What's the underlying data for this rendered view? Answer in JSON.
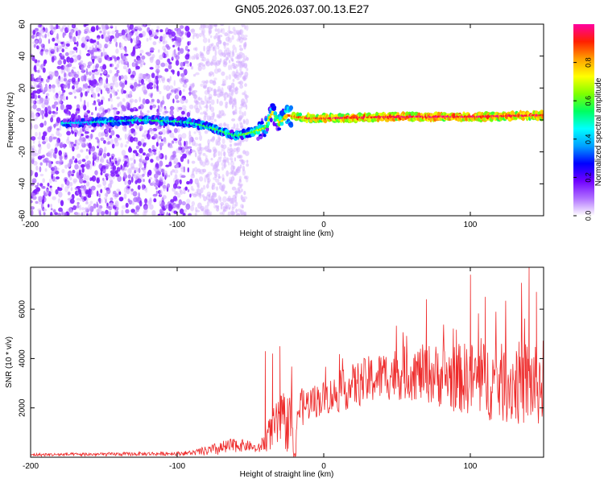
{
  "title": "GN05.2026.037.00.13.E27",
  "chart_data": [
    {
      "type": "heatmap",
      "xlabel": "Height of straight line (km)",
      "ylabel": "Frequency (Hz)",
      "xlim": [
        -200,
        150
      ],
      "ylim": [
        -60,
        60
      ],
      "xticks": [
        -200,
        -100,
        0,
        100
      ],
      "yticks": [
        -60,
        -40,
        -20,
        0,
        20,
        40,
        60
      ],
      "colorbar": {
        "label": "Normalized spectral amplitude",
        "range": [
          0,
          1
        ],
        "ticks": [
          "0.0",
          "0.2",
          "0.4",
          "0.6",
          "0.8"
        ],
        "colors": [
          "#ffffff",
          "#b070ff",
          "#7000ff",
          "#0000ff",
          "#00a0ff",
          "#00ffff",
          "#00ff60",
          "#80ff00",
          "#ffff00",
          "#ffa000",
          "#ff2000",
          "#ff00a0"
        ]
      },
      "ridge_frequency_hz": [
        [
          -175,
          -2
        ],
        [
          -150,
          -1
        ],
        [
          -125,
          0
        ],
        [
          -100,
          -1
        ],
        [
          -90,
          -2
        ],
        [
          -80,
          -4
        ],
        [
          -70,
          -7
        ],
        [
          -60,
          -10
        ],
        [
          -50,
          -8
        ],
        [
          -40,
          -5
        ],
        [
          -35,
          5
        ],
        [
          -30,
          -2
        ],
        [
          -25,
          3
        ],
        [
          -20,
          2
        ],
        [
          -10,
          1
        ],
        [
          0,
          1
        ],
        [
          50,
          2
        ],
        [
          100,
          2
        ],
        [
          150,
          3
        ]
      ],
      "ridge_amplitude": [
        [
          -175,
          0.3
        ],
        [
          -150,
          0.35
        ],
        [
          -100,
          0.4
        ],
        [
          -60,
          0.45
        ],
        [
          -40,
          0.55
        ],
        [
          -20,
          0.75
        ],
        [
          0,
          0.8
        ],
        [
          50,
          0.85
        ],
        [
          100,
          0.85
        ],
        [
          150,
          0.82
        ]
      ]
    },
    {
      "type": "line",
      "xlabel": "Height of straight line (km)",
      "ylabel": "SNR (10 * v/v)",
      "xlim": [
        -200,
        150
      ],
      "ylim": [
        0,
        7700
      ],
      "xticks": [
        -200,
        -100,
        0,
        100
      ],
      "yticks": [
        2000,
        4000,
        6000
      ],
      "color": "#ee2a2a",
      "envelope": {
        "x": [
          -200,
          -150,
          -100,
          -90,
          -80,
          -70,
          -60,
          -50,
          -45,
          -40,
          -35,
          -30,
          -25,
          -20,
          -10,
          0,
          10,
          20,
          30,
          40,
          50,
          60,
          70,
          80,
          90,
          100,
          110,
          120,
          130,
          140,
          150
        ],
        "mean": [
          100,
          120,
          150,
          180,
          250,
          350,
          500,
          450,
          300,
          700,
          1100,
          1400,
          1400,
          1800,
          2200,
          2400,
          2600,
          2900,
          3100,
          3300,
          3400,
          3400,
          3400,
          3300,
          3200,
          3200,
          3100,
          3000,
          3000,
          3000,
          3000
        ],
        "spread": [
          60,
          70,
          80,
          100,
          200,
          300,
          300,
          200,
          150,
          500,
          800,
          1100,
          1200,
          900,
          700,
          700,
          800,
          900,
          1000,
          1000,
          1100,
          1100,
          1200,
          1300,
          1400,
          1500,
          1600,
          1600,
          1700,
          1800,
          1800
        ]
      },
      "spikes": [
        [
          -40,
          4300
        ],
        [
          -35,
          4200
        ],
        [
          -30,
          4500
        ],
        [
          70,
          6400
        ],
        [
          100,
          7400
        ],
        [
          110,
          6500
        ],
        [
          140,
          7700
        ],
        [
          145,
          6700
        ]
      ]
    }
  ]
}
